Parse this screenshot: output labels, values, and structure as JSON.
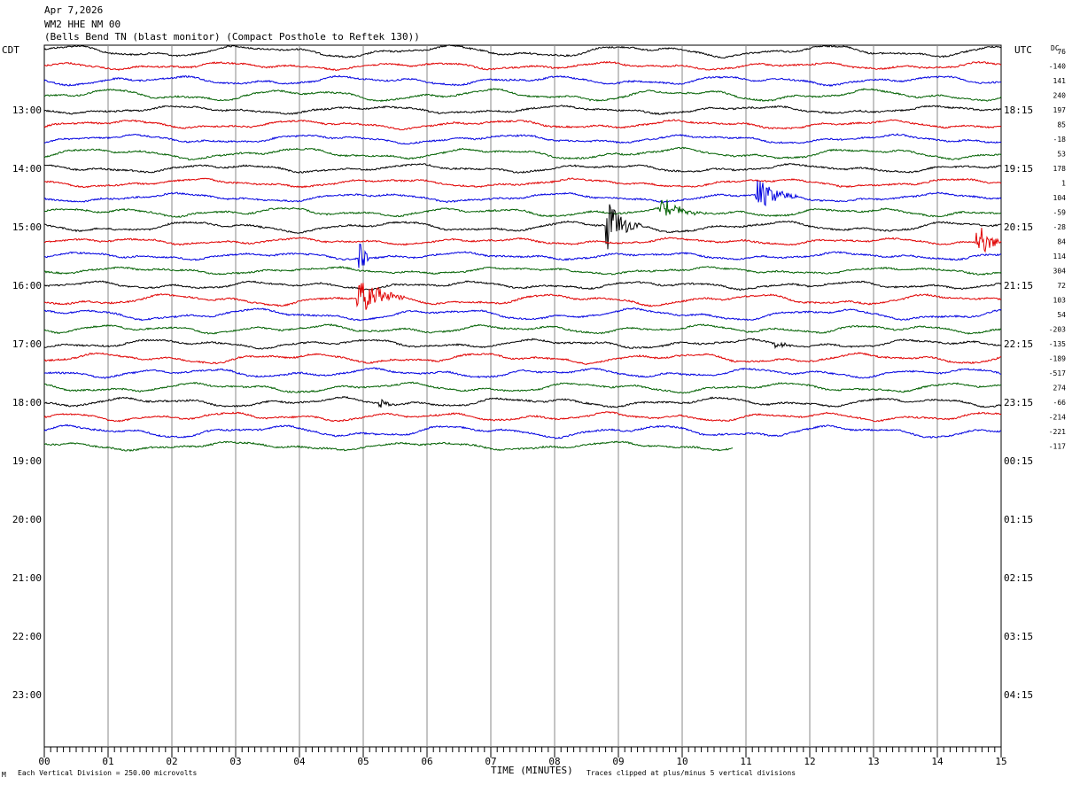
{
  "header": {
    "date": "Apr 7,2026",
    "station": "WM2 HHE NM 00",
    "description": "(Bells Bend TN (blast monitor) (Compact Posthole to Reftek 130))"
  },
  "left_timezone": "CDT",
  "right_timezone": "UTC",
  "dc_header": "DC",
  "footer": {
    "scale_note": "Each Vertical Division =  250.00 microvolts",
    "xlabel": "TIME (MINUTES)",
    "clip_note": "Traces clipped at plus/minus 5 vertical divisions",
    "corner_mark": "M"
  },
  "colors": {
    "trace_cycle": [
      "#000000",
      "#e00000",
      "#0000e0",
      "#006000"
    ],
    "grid": "#8a8a8a",
    "background": "#ffffff"
  },
  "chart_data": {
    "type": "line",
    "title": "",
    "xlabel": "TIME (MINUTES)",
    "ylabel": "",
    "xlim": [
      0,
      15
    ],
    "x_ticks": [
      "00",
      "01",
      "02",
      "03",
      "04",
      "05",
      "06",
      "07",
      "08",
      "09",
      "10",
      "11",
      "12",
      "13",
      "14",
      "15"
    ],
    "rows_per_hour": 4,
    "minutes_per_row": 15,
    "left_hour_labels": [
      "13:00",
      "14:00",
      "15:00",
      "16:00",
      "17:00",
      "18:00",
      "19:00",
      "20:00",
      "21:00",
      "22:00",
      "23:00"
    ],
    "right_hour_labels": [
      "18:15",
      "19:15",
      "20:15",
      "21:15",
      "22:15",
      "23:15",
      "00:15",
      "01:15",
      "02:15",
      "03:15",
      "04:15"
    ],
    "dc_offsets": [
      76,
      -140,
      141,
      240,
      197,
      85,
      -18,
      53,
      178,
      1,
      104,
      -59,
      -28,
      84,
      114,
      304,
      72,
      103,
      54,
      -203,
      -135,
      -189,
      -517,
      274,
      -66,
      -214,
      -221,
      -117
    ],
    "last_row_end_minute": 10.8,
    "events": [
      {
        "row": 10,
        "minute": 11.2,
        "amplitude": 2.0,
        "duration": 0.6
      },
      {
        "row": 12,
        "minute": 8.85,
        "amplitude": 3.2,
        "duration": 0.5
      },
      {
        "row": 11,
        "minute": 9.7,
        "amplitude": 1.3,
        "duration": 0.7
      },
      {
        "row": 13,
        "minute": 14.65,
        "amplitude": 2.4,
        "duration": 0.4
      },
      {
        "row": 14,
        "minute": 4.97,
        "amplitude": 3.0,
        "duration": 0.12
      },
      {
        "row": 17,
        "minute": 4.95,
        "amplitude": 2.2,
        "duration": 0.7
      },
      {
        "row": 20,
        "minute": 11.5,
        "amplitude": 0.6,
        "duration": 0.3
      },
      {
        "row": 24,
        "minute": 5.3,
        "amplitude": 0.8,
        "duration": 0.15
      }
    ]
  }
}
